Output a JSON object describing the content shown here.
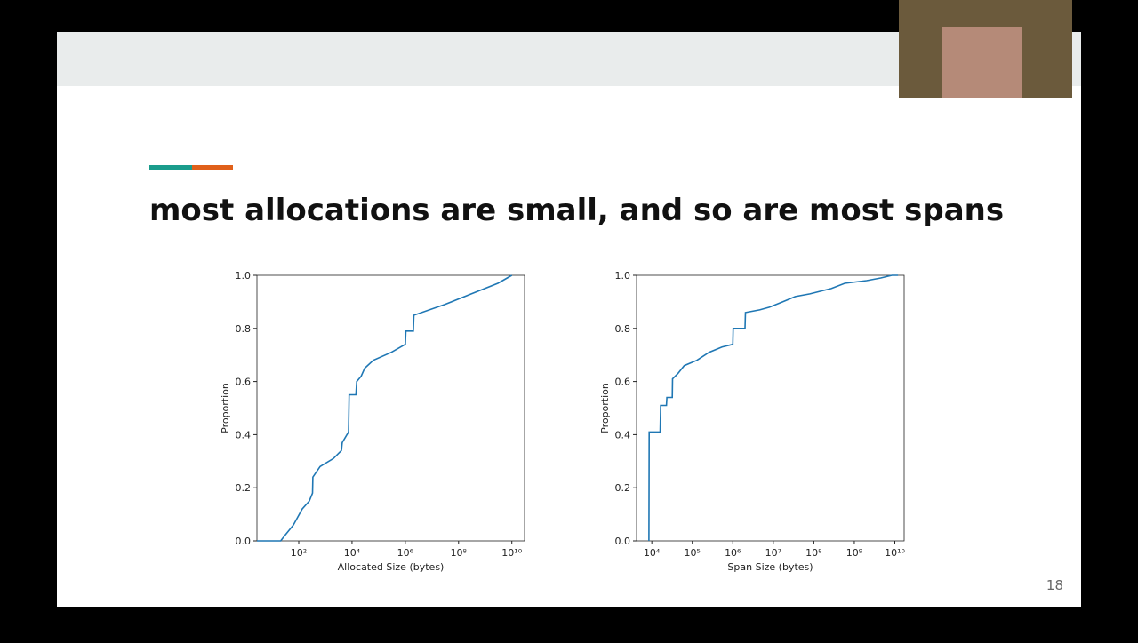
{
  "slide": {
    "title": "most allocations are small, and so are most spans",
    "page_number": 18
  },
  "chart_data": [
    {
      "type": "line",
      "xlabel": "Allocated Size (bytes)",
      "ylabel": "Proportion",
      "xscale": "log",
      "color": "#1f77b4",
      "xlim": [
        2.7,
        30000000000
      ],
      "ylim": [
        0,
        1
      ],
      "xticks": [
        {
          "value": 100,
          "label": "10²"
        },
        {
          "value": 10000,
          "label": "10⁴"
        },
        {
          "value": 1000000,
          "label": "10⁶"
        },
        {
          "value": 100000000,
          "label": "10⁸"
        },
        {
          "value": 10000000000,
          "label": "10¹⁰"
        }
      ],
      "yticks": [
        {
          "value": 0,
          "label": "0.0"
        },
        {
          "value": 0.2,
          "label": "0.2"
        },
        {
          "value": 0.4,
          "label": "0.4"
        },
        {
          "value": 0.6,
          "label": "0.6"
        },
        {
          "value": 0.8,
          "label": "0.8"
        },
        {
          "value": 1,
          "label": "1.0"
        }
      ],
      "x": [
        2.7,
        21,
        30,
        63,
        135,
        250,
        330,
        340,
        630,
        2000,
        4000,
        4300,
        7400,
        7800,
        14000,
        15000,
        22000,
        30000,
        63000,
        300000,
        1000000,
        1050000,
        2000000,
        2100000,
        30000000,
        300000000,
        3000000000,
        10000000000
      ],
      "values": [
        0,
        0,
        0.02,
        0.06,
        0.12,
        0.15,
        0.18,
        0.24,
        0.28,
        0.31,
        0.34,
        0.37,
        0.41,
        0.55,
        0.55,
        0.6,
        0.62,
        0.65,
        0.68,
        0.71,
        0.74,
        0.79,
        0.79,
        0.85,
        0.89,
        0.93,
        0.97,
        1.0
      ]
    },
    {
      "type": "line",
      "xlabel": "Span Size (bytes)",
      "ylabel": "Proportion",
      "xscale": "log",
      "color": "#1f77b4",
      "xlim": [
        4200,
        17000000000
      ],
      "ylim": [
        0,
        1
      ],
      "xticks": [
        {
          "value": 10000,
          "label": "10⁴"
        },
        {
          "value": 100000,
          "label": "10⁵"
        },
        {
          "value": 1000000,
          "label": "10⁶"
        },
        {
          "value": 10000000,
          "label": "10⁷"
        },
        {
          "value": 100000000,
          "label": "10⁸"
        },
        {
          "value": 1000000000,
          "label": "10⁹"
        },
        {
          "value": 10000000000,
          "label": "10¹⁰"
        }
      ],
      "yticks": [
        {
          "value": 0,
          "label": "0.0"
        },
        {
          "value": 0.2,
          "label": "0.2"
        },
        {
          "value": 0.4,
          "label": "0.4"
        },
        {
          "value": 0.6,
          "label": "0.6"
        },
        {
          "value": 0.8,
          "label": "0.8"
        },
        {
          "value": 1,
          "label": "1.0"
        }
      ],
      "x": [
        8500,
        8600,
        16000,
        16500,
        23000,
        23500,
        32000,
        32500,
        44000,
        63000,
        130000,
        260000,
        540000,
        1000000,
        1020000,
        2000000,
        2050000,
        4600000,
        8000000,
        17000000,
        35000000,
        80000000,
        270000000,
        580000000,
        2000000000,
        4500000000,
        8500000000,
        12000000000
      ],
      "values": [
        0,
        0.41,
        0.41,
        0.51,
        0.51,
        0.54,
        0.54,
        0.61,
        0.63,
        0.66,
        0.68,
        0.71,
        0.73,
        0.74,
        0.8,
        0.8,
        0.86,
        0.87,
        0.88,
        0.9,
        0.92,
        0.93,
        0.95,
        0.97,
        0.98,
        0.99,
        1.0,
        1.0
      ]
    }
  ]
}
